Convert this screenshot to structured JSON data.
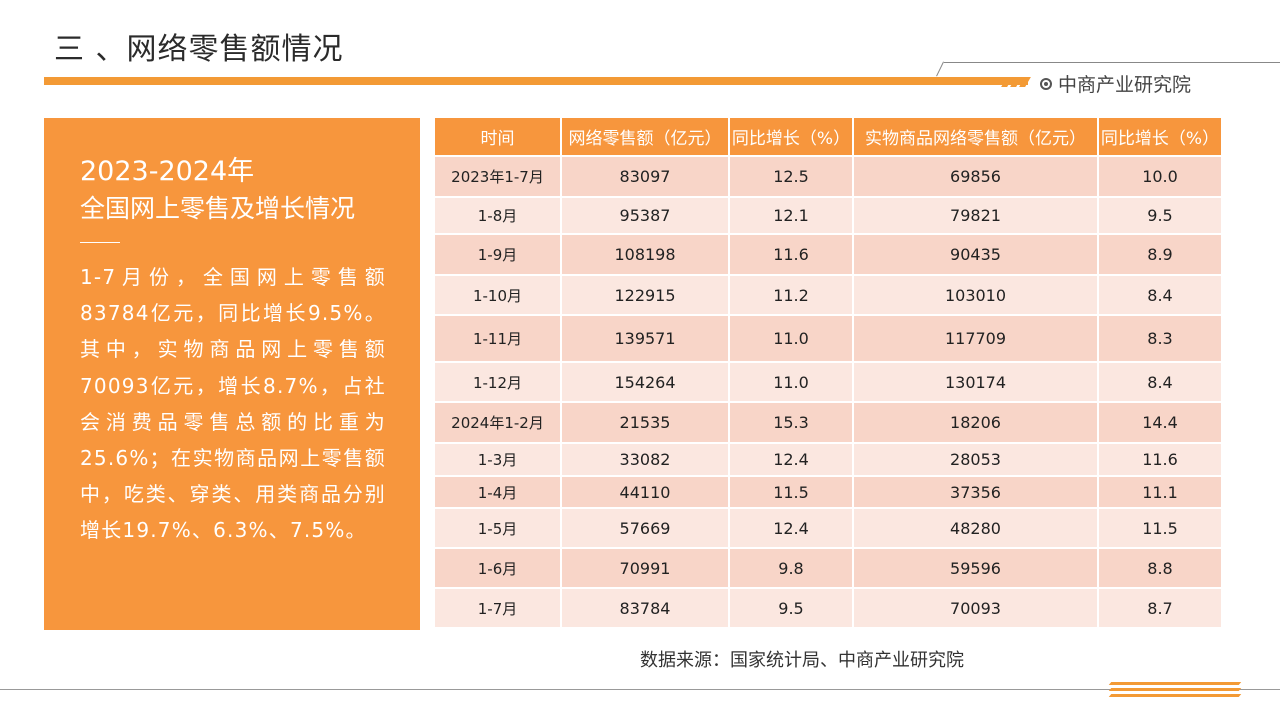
{
  "header": {
    "title": "三 、网络零售额情况",
    "brand": "中商产业研究院",
    "brand_icon": "target-circle-icon",
    "accent_color": "#f39a35"
  },
  "left_panel": {
    "heading_line1": "2023-2024年",
    "heading_line2": "全国网上零售及增长情况",
    "body": "1-7月份，全国网上零售额83784亿元，同比增长9.5%。其中，实物商品网上零售额70093亿元，增长8.7%，占社会消费品零售总额的比重为25.6%；在实物商品网上零售额中，吃类、穿类、用类商品分别增长19.7%、6.3%、7.5%。"
  },
  "table": {
    "headers": [
      "时间",
      "网络零售额（亿元）",
      "同比增长（%）",
      "实物商品网络零售额（亿元）",
      "同比增长（%）"
    ],
    "rows": [
      [
        "2023年1-7月",
        "83097",
        "12.5",
        "69856",
        "10.0"
      ],
      [
        "1-8月",
        "95387",
        "12.1",
        "79821",
        "9.5"
      ],
      [
        "1-9月",
        "108198",
        "11.6",
        "90435",
        "8.9"
      ],
      [
        "1-10月",
        "122915",
        "11.2",
        "103010",
        "8.4"
      ],
      [
        "1-11月",
        "139571",
        "11.0",
        "117709",
        "8.3"
      ],
      [
        "1-12月",
        "154264",
        "11.0",
        "130174",
        "8.4"
      ],
      [
        "2024年1-2月",
        "21535",
        "15.3",
        "18206",
        "14.4"
      ],
      [
        "1-3月",
        "33082",
        "12.4",
        "28053",
        "11.6"
      ],
      [
        "1-4月",
        "44110",
        "11.5",
        "37356",
        "11.1"
      ],
      [
        "1-5月",
        "57669",
        "12.4",
        "48280",
        "11.5"
      ],
      [
        "1-6月",
        "70991",
        "9.8",
        "59596",
        "8.8"
      ],
      [
        "1-7月",
        "83784",
        "9.5",
        "70093",
        "8.7"
      ]
    ]
  },
  "source": "数据来源：国家统计局、中商产业研究院"
}
